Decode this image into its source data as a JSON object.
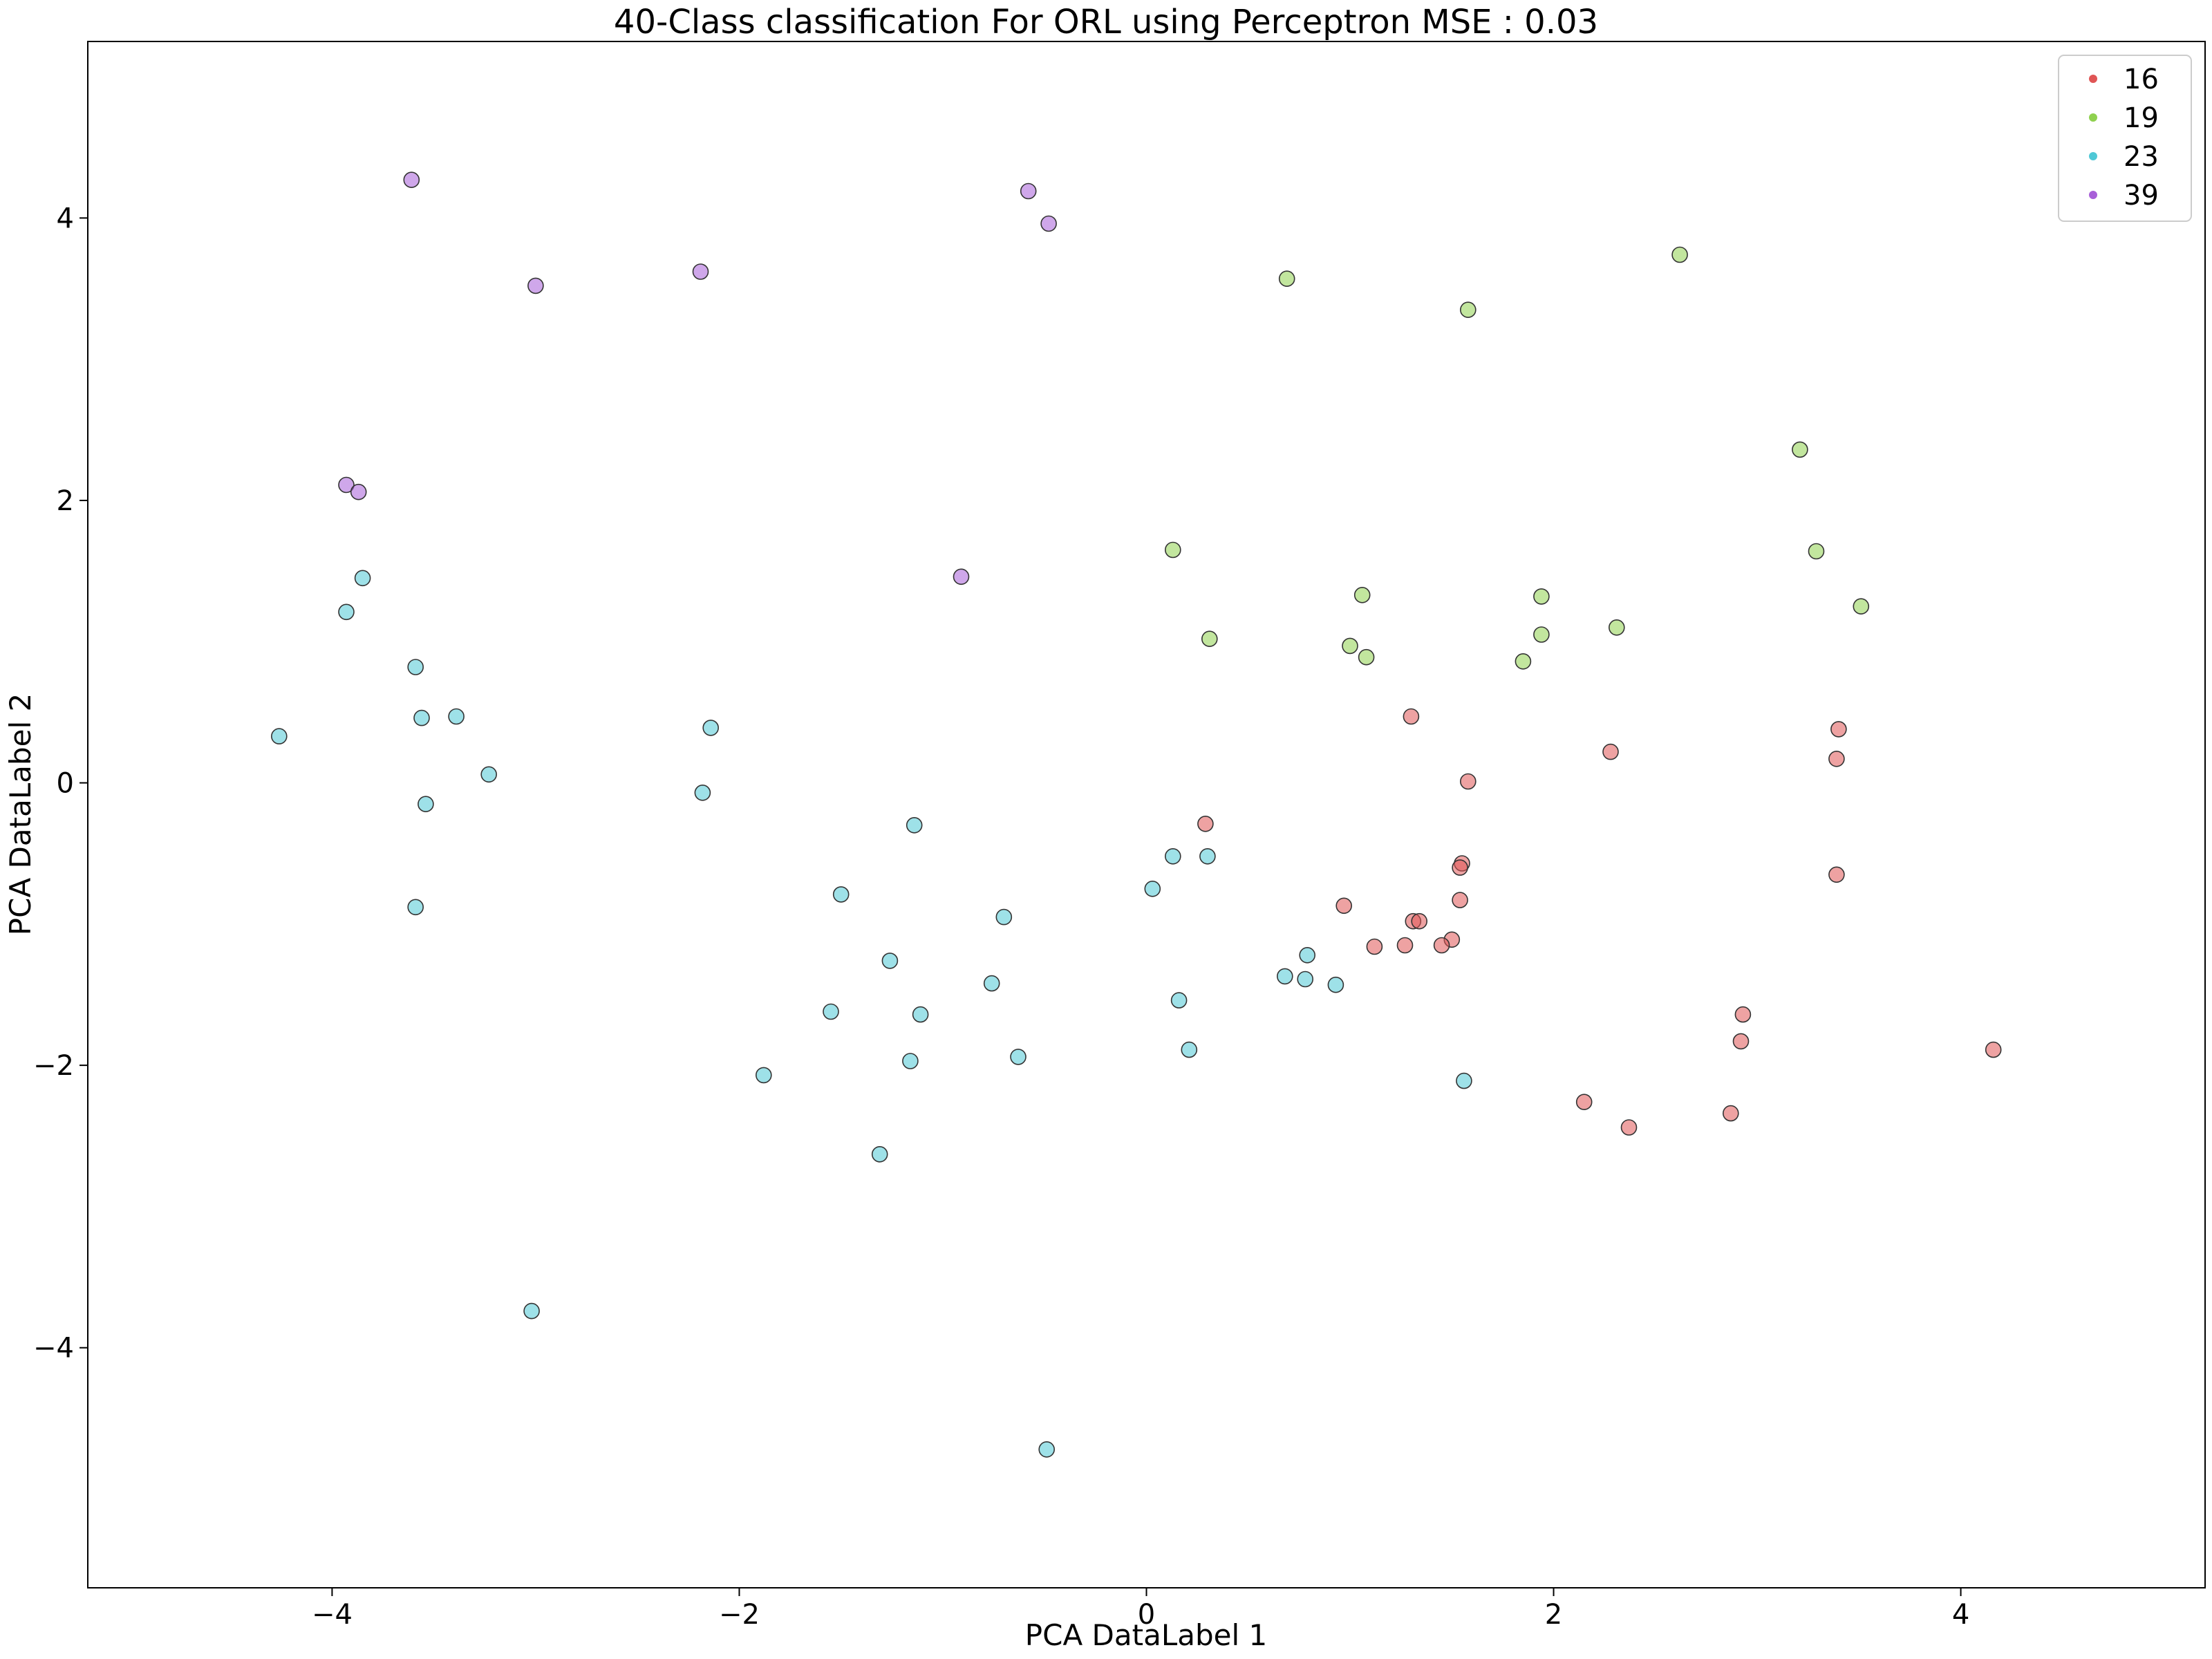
{
  "chart_data": {
    "type": "scatter",
    "title": "40-Class classification For ORL using Perceptron MSE : 0.03",
    "xlabel": "PCA DataLabel 1",
    "ylabel": "PCA DataLabel 2",
    "xlim": [
      -5.2,
      5.2
    ],
    "ylim": [
      -5.7,
      5.25
    ],
    "xticks": [
      -4,
      -2,
      0,
      2,
      4
    ],
    "yticks": [
      -4,
      -2,
      0,
      2,
      4
    ],
    "xtick_labels": [
      "−4",
      "−2",
      "0",
      "2",
      "4"
    ],
    "ytick_labels": [
      "−4",
      "−2",
      "0",
      "2",
      "4"
    ],
    "grid": false,
    "legend_position": "top-right",
    "series": [
      {
        "name": "16",
        "color": "#e05555",
        "points": [
          [
            1.3,
            0.47
          ],
          [
            2.28,
            0.22
          ],
          [
            3.4,
            0.38
          ],
          [
            3.39,
            0.17
          ],
          [
            1.58,
            0.01
          ],
          [
            0.29,
            -0.29
          ],
          [
            1.55,
            -0.57
          ],
          [
            1.54,
            -0.6
          ],
          [
            3.39,
            -0.65
          ],
          [
            0.97,
            -0.87
          ],
          [
            1.54,
            -0.83
          ],
          [
            1.31,
            -0.98
          ],
          [
            1.34,
            -0.98
          ],
          [
            1.5,
            -1.11
          ],
          [
            1.12,
            -1.16
          ],
          [
            1.27,
            -1.15
          ],
          [
            1.45,
            -1.15
          ],
          [
            2.93,
            -1.64
          ],
          [
            2.92,
            -1.83
          ],
          [
            4.16,
            -1.89
          ],
          [
            2.15,
            -2.26
          ],
          [
            2.37,
            -2.44
          ],
          [
            2.87,
            -2.34
          ]
        ]
      },
      {
        "name": "19",
        "color": "#8fd14f",
        "points": [
          [
            2.62,
            3.74
          ],
          [
            0.69,
            3.57
          ],
          [
            1.58,
            3.35
          ],
          [
            3.21,
            2.36
          ],
          [
            3.29,
            1.64
          ],
          [
            3.51,
            1.25
          ],
          [
            0.13,
            1.65
          ],
          [
            1.06,
            1.33
          ],
          [
            1.94,
            1.32
          ],
          [
            0.31,
            1.02
          ],
          [
            1.0,
            0.97
          ],
          [
            1.08,
            0.89
          ],
          [
            1.94,
            1.05
          ],
          [
            2.31,
            1.1
          ],
          [
            1.85,
            0.86
          ]
        ]
      },
      {
        "name": "23",
        "color": "#4fc8d6",
        "points": [
          [
            -3.85,
            1.45
          ],
          [
            -3.93,
            1.21
          ],
          [
            -3.59,
            0.82
          ],
          [
            -4.26,
            0.33
          ],
          [
            -3.56,
            0.46
          ],
          [
            -3.39,
            0.47
          ],
          [
            -3.23,
            0.06
          ],
          [
            -3.54,
            -0.15
          ],
          [
            -3.59,
            -0.88
          ],
          [
            -2.14,
            0.39
          ],
          [
            -2.18,
            -0.07
          ],
          [
            -1.14,
            -0.3
          ],
          [
            -1.5,
            -0.79
          ],
          [
            -0.7,
            -0.95
          ],
          [
            -1.26,
            -1.26
          ],
          [
            -0.76,
            -1.42
          ],
          [
            -1.55,
            -1.62
          ],
          [
            -1.11,
            -1.64
          ],
          [
            -1.16,
            -1.97
          ],
          [
            -0.63,
            -1.94
          ],
          [
            -1.88,
            -2.07
          ],
          [
            -1.31,
            -2.63
          ],
          [
            -3.02,
            -3.74
          ],
          [
            -0.49,
            -4.72
          ],
          [
            0.13,
            -0.52
          ],
          [
            0.3,
            -0.52
          ],
          [
            0.03,
            -0.75
          ],
          [
            0.68,
            -1.37
          ],
          [
            0.79,
            -1.22
          ],
          [
            0.78,
            -1.39
          ],
          [
            0.93,
            -1.43
          ],
          [
            0.16,
            -1.54
          ],
          [
            0.21,
            -1.89
          ],
          [
            1.56,
            -2.11
          ]
        ]
      },
      {
        "name": "39",
        "color": "#a85fd8",
        "points": [
          [
            -3.61,
            4.27
          ],
          [
            -0.58,
            4.19
          ],
          [
            -0.48,
            3.96
          ],
          [
            -2.19,
            3.62
          ],
          [
            -3.0,
            3.52
          ],
          [
            -3.93,
            2.11
          ],
          [
            -3.87,
            2.06
          ],
          [
            -0.91,
            1.46
          ]
        ]
      }
    ]
  }
}
